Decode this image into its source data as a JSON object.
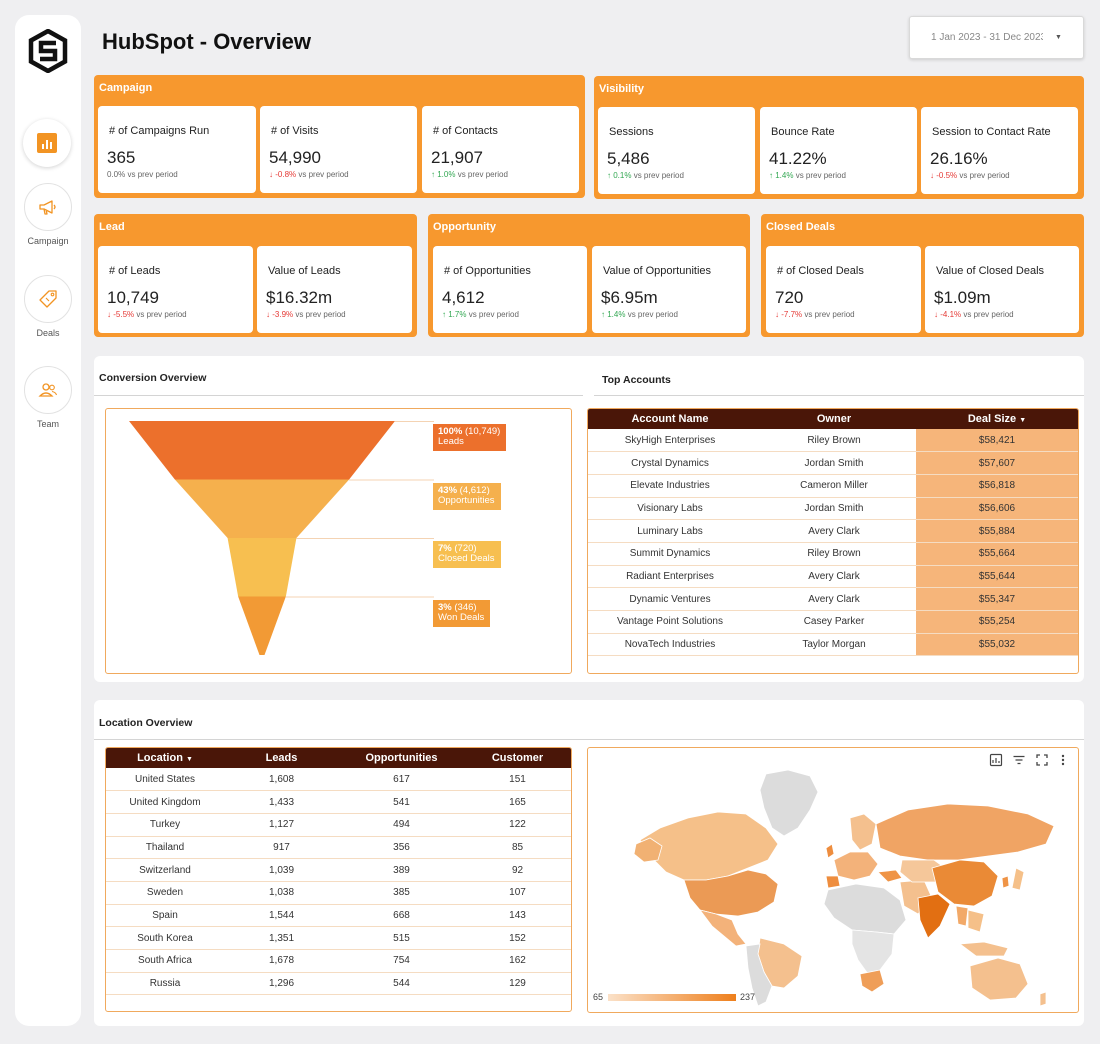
{
  "header": {
    "title": "HubSpot - Overview",
    "date_range": "1 Jan 2023 - 31 Dec 2023"
  },
  "sidebar": {
    "items": [
      {
        "label": "Campaign"
      },
      {
        "label": "Deals"
      },
      {
        "label": "Team"
      }
    ]
  },
  "kpi": {
    "campaign": {
      "title": "Campaign",
      "cards": [
        {
          "label": "# of Campaigns Run",
          "value": "365",
          "delta": "0.0%",
          "suffix": "vs prev period",
          "dir": "flat"
        },
        {
          "label": "# of Visits",
          "value": "54,990",
          "delta": "-0.8%",
          "suffix": "vs prev period",
          "dir": "down"
        },
        {
          "label": "# of Contacts",
          "value": "21,907",
          "delta": "1.0%",
          "suffix": "vs prev period",
          "dir": "up"
        }
      ]
    },
    "visibility": {
      "title": "Visibility",
      "cards": [
        {
          "label": "Sessions",
          "value": "5,486",
          "delta": "0.1%",
          "suffix": "vs prev period",
          "dir": "up"
        },
        {
          "label": "Bounce Rate",
          "value": "41.22%",
          "delta": "1.4%",
          "suffix": "vs prev period",
          "dir": "up"
        },
        {
          "label": "Session to Contact Rate",
          "value": "26.16%",
          "delta": "-0.5%",
          "suffix": "vs prev period",
          "dir": "down"
        }
      ]
    },
    "lead": {
      "title": "Lead",
      "cards": [
        {
          "label": "# of Leads",
          "value": "10,749",
          "delta": "-5.5%",
          "suffix": "vs prev period",
          "dir": "down"
        },
        {
          "label": "Value of Leads",
          "value": "$16.32m",
          "delta": "-3.9%",
          "suffix": "vs prev period",
          "dir": "down"
        }
      ]
    },
    "opportunity": {
      "title": "Opportunity",
      "cards": [
        {
          "label": "# of Opportunities",
          "value": "4,612",
          "delta": "1.7%",
          "suffix": "vs prev period",
          "dir": "up"
        },
        {
          "label": "Value of Opportunities",
          "value": "$6.95m",
          "delta": "1.4%",
          "suffix": "vs prev period",
          "dir": "up"
        }
      ]
    },
    "closed": {
      "title": "Closed Deals",
      "cards": [
        {
          "label": "# of Closed Deals",
          "value": "720",
          "delta": "-7.7%",
          "suffix": "vs prev period",
          "dir": "down"
        },
        {
          "label": "Value of Closed Deals",
          "value": "$1.09m",
          "delta": "-4.1%",
          "suffix": "vs prev period",
          "dir": "down"
        }
      ]
    }
  },
  "conversion": {
    "title": "Conversion Overview",
    "stages": [
      {
        "pct": "100%",
        "count": "(10,749)",
        "name": "Leads",
        "value": 10749,
        "color": "#ec702c"
      },
      {
        "pct": "43%",
        "count": "(4,612)",
        "name": "Opportunities",
        "value": 4612,
        "color": "#f5b04d"
      },
      {
        "pct": "7%",
        "count": "(720)",
        "name": "Closed Deals",
        "value": 720,
        "color": "#f7bf50"
      },
      {
        "pct": "3%",
        "count": "(346)",
        "name": "Won Deals",
        "value": 346,
        "color": "#f29a35"
      }
    ]
  },
  "top_accounts": {
    "title": "Top Accounts",
    "columns": [
      "Account Name",
      "Owner",
      "Deal Size"
    ],
    "rows": [
      [
        "SkyHigh Enterprises",
        "Riley Brown",
        "$58,421"
      ],
      [
        "Crystal Dynamics",
        "Jordan Smith",
        "$57,607"
      ],
      [
        "Elevate Industries",
        "Cameron Miller",
        "$56,818"
      ],
      [
        "Visionary Labs",
        "Jordan Smith",
        "$56,606"
      ],
      [
        "Luminary Labs",
        "Avery Clark",
        "$55,884"
      ],
      [
        "Summit Dynamics",
        "Riley Brown",
        "$55,664"
      ],
      [
        "Radiant Enterprises",
        "Avery Clark",
        "$55,644"
      ],
      [
        "Dynamic Ventures",
        "Avery Clark",
        "$55,347"
      ],
      [
        "Vantage Point Solutions",
        "Casey Parker",
        "$55,254"
      ],
      [
        "NovaTech Industries",
        "Taylor Morgan",
        "$55,032"
      ]
    ]
  },
  "location": {
    "title": "Location Overview",
    "columns": [
      "Location",
      "Leads",
      "Opportunities",
      "Customer"
    ],
    "rows": [
      [
        "United States",
        "1,608",
        "617",
        "151"
      ],
      [
        "United Kingdom",
        "1,433",
        "541",
        "165"
      ],
      [
        "Turkey",
        "1,127",
        "494",
        "122"
      ],
      [
        "Thailand",
        "917",
        "356",
        "85"
      ],
      [
        "Switzerland",
        "1,039",
        "389",
        "92"
      ],
      [
        "Sweden",
        "1,038",
        "385",
        "107"
      ],
      [
        "Spain",
        "1,544",
        "668",
        "143"
      ],
      [
        "South Korea",
        "1,351",
        "515",
        "152"
      ],
      [
        "South Africa",
        "1,678",
        "754",
        "162"
      ],
      [
        "Russia",
        "1,296",
        "544",
        "129"
      ]
    ]
  },
  "map": {
    "legend_min": "65",
    "legend_max": "237",
    "color_low": "#fbe1c8",
    "color_high": "#ee7f1c"
  }
}
